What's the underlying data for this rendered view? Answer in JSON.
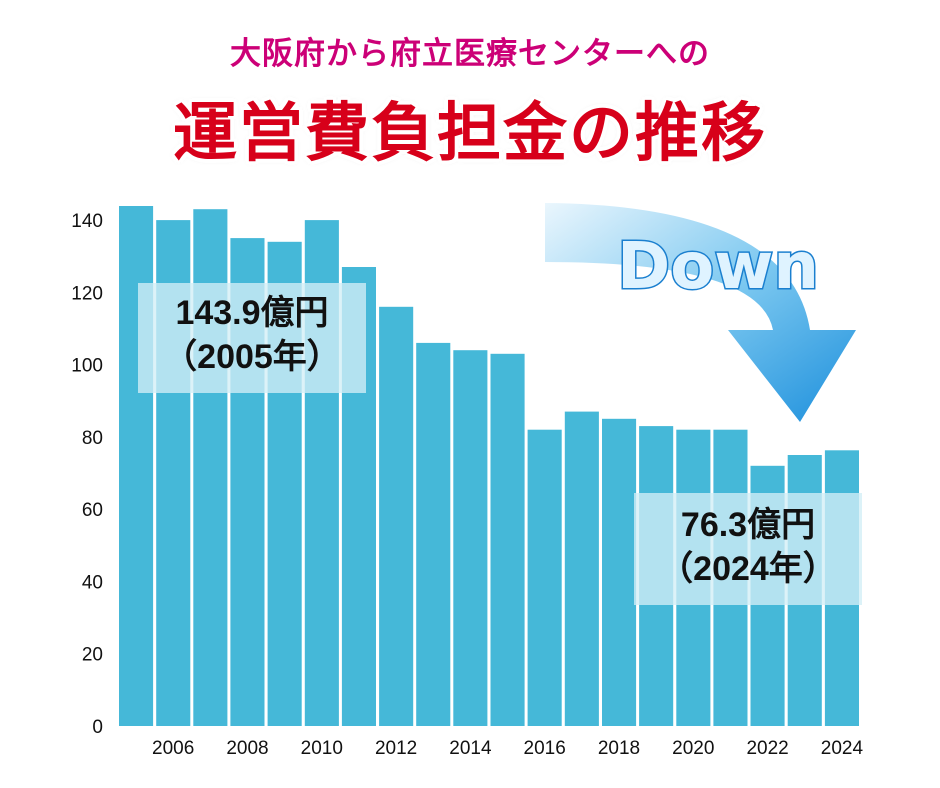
{
  "header": {
    "subtitle": "大阪府から府立医療センターへの",
    "title": "運営費負担金の推移"
  },
  "down_label": "Down",
  "callouts": {
    "first": {
      "value": "143.9億円",
      "year": "（2005年）"
    },
    "last": {
      "value": "76.3億円",
      "year": "（2024年）"
    }
  },
  "colors": {
    "bar": "#45b8d8",
    "title": "#d7001a",
    "subtitle": "#cc0077",
    "arrow": "#2a9ae0"
  },
  "chart_data": {
    "type": "bar",
    "categories": [
      "2005",
      "2006",
      "2007",
      "2008",
      "2009",
      "2010",
      "2011",
      "2012",
      "2013",
      "2014",
      "2015",
      "2016",
      "2017",
      "2018",
      "2019",
      "2020",
      "2021",
      "2022",
      "2023",
      "2024"
    ],
    "values": [
      143.9,
      140,
      143,
      135,
      134,
      140,
      127,
      116,
      106,
      104,
      103,
      82,
      87,
      85,
      83,
      82,
      82,
      72,
      75,
      76.3
    ],
    "x_tick_labels": [
      "2006",
      "2008",
      "2010",
      "2012",
      "2014",
      "2016",
      "2018",
      "2020",
      "2022",
      "2024"
    ],
    "y_ticks": [
      0,
      20,
      40,
      60,
      80,
      100,
      120,
      140
    ],
    "ylim": [
      0,
      145
    ],
    "grid": false,
    "legend": "none"
  }
}
